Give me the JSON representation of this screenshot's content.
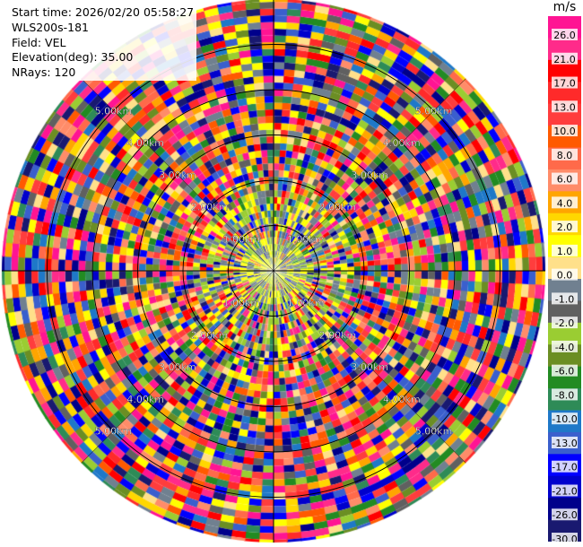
{
  "header": {
    "start_time": "Start time: 2026/02/20 05:58:27",
    "instrument": "WLS200s-181",
    "field": "Field: VEL",
    "elevation": "Elevation(deg): 35.00",
    "nrays": "NRays: 120"
  },
  "colorbar": {
    "unit": "m/s",
    "ticks": [
      "26.0",
      "21.0",
      "17.0",
      "13.0",
      "10.0",
      "8.0",
      "6.0",
      "4.0",
      "2.0",
      "1.0",
      "0.0",
      "-1.0",
      "-2.0",
      "-4.0",
      "-6.0",
      "-8.0",
      "-10.0",
      "-13.0",
      "-17.0",
      "-21.0",
      "-26.0",
      "-30.0"
    ],
    "colors": [
      "#ff1493",
      "#ff2b8a",
      "#ff0000",
      "#ff2a2a",
      "#ff3d3d",
      "#ff5a00",
      "#ff6a4a",
      "#ff8c69",
      "#ffa500",
      "#ffd700",
      "#ffff00",
      "#ffe08a",
      "#708090",
      "#606060",
      "#9acd32",
      "#6b8e23",
      "#228b22",
      "#2e8b57",
      "#1e78c8",
      "#3a5fcd",
      "#0000ff",
      "#0000cd",
      "#00008b",
      "#191970"
    ]
  },
  "chart_data": {
    "type": "heatmap",
    "projection": "polar-ppi",
    "field": "VEL",
    "units": "m/s",
    "nrays": 120,
    "range_rings_km": [
      1,
      2,
      3,
      4,
      5
    ],
    "ring_labels": [
      "1.00km",
      "2.00km",
      "3.00km",
      "4.00km",
      "5.00km"
    ],
    "max_range_km": 6.0,
    "color_levels": [
      26,
      21,
      17,
      13,
      10,
      8,
      6,
      4,
      2,
      1,
      0,
      -1,
      -2,
      -4,
      -6,
      -8,
      -10,
      -13,
      -17,
      -21,
      -26,
      -30
    ],
    "near_range_dominant_colors": [
      "#ffff00",
      "#9acd32",
      "#708090"
    ]
  }
}
